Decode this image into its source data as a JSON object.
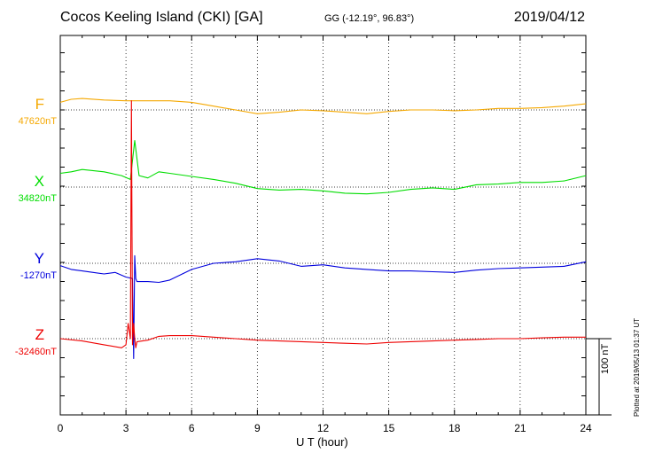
{
  "header": {
    "title": "Cocos Keeling Island (CKI)  [GA]",
    "coords": "GG (-12.19°,  96.83°)",
    "date": "2019/04/12"
  },
  "footer": {
    "plotted": "Plotted at 2019/05/13 01:37 UT",
    "scale_label": "100 nT"
  },
  "chart_data": {
    "type": "line",
    "xlabel": "U T (hour)",
    "xlim": [
      0,
      24
    ],
    "xticks": [
      "0",
      "3",
      "6",
      "9",
      "12",
      "15",
      "18",
      "21",
      "24"
    ],
    "scale_bar_nT": 100,
    "series": [
      {
        "name": "F",
        "baseline": "47620nT",
        "color": "#f5a800",
        "x": [
          0,
          0.5,
          1,
          2,
          3,
          4,
          5,
          6,
          7,
          8,
          9,
          10,
          11,
          12,
          13,
          14,
          15,
          16,
          17,
          18,
          19,
          20,
          21,
          22,
          23,
          24
        ],
        "y": [
          10,
          14,
          15,
          13,
          12,
          12,
          12,
          10,
          5,
          0,
          -5,
          -3,
          0,
          -1,
          -3,
          -5,
          -2,
          0,
          0,
          -1,
          0,
          2,
          2,
          3,
          5,
          8
        ]
      },
      {
        "name": "X",
        "baseline": "34820nT",
        "color": "#00dd00",
        "x": [
          0,
          0.5,
          1,
          2,
          2.8,
          3.2,
          3.4,
          3.6,
          4,
          4.5,
          5,
          6,
          7,
          8,
          9,
          10,
          11,
          12,
          13,
          14,
          15,
          16,
          17,
          18,
          19,
          20,
          21,
          22,
          23,
          24
        ],
        "y": [
          18,
          20,
          23,
          20,
          15,
          10,
          61,
          15,
          12,
          20,
          18,
          14,
          10,
          5,
          -2,
          -4,
          -3,
          -5,
          -8,
          -9,
          -7,
          -3,
          -1,
          -3,
          3,
          4,
          6,
          6,
          8,
          15
        ]
      },
      {
        "name": "Y",
        "baseline": "-1270nT",
        "color": "#0000dd",
        "x": [
          0,
          0.5,
          1,
          1.5,
          2,
          2.5,
          3,
          3.3,
          3.35,
          3.4,
          3.45,
          3.5,
          4,
          4.5,
          5,
          5.5,
          6,
          7,
          8,
          9,
          10,
          11,
          12,
          13,
          14,
          15,
          16,
          17,
          18,
          19,
          20,
          21,
          22,
          23,
          24
        ],
        "y": [
          -3,
          -8,
          -10,
          -12,
          -14,
          -12,
          -18,
          -20,
          -125,
          10,
          -20,
          -24,
          -24,
          -25,
          -22,
          -15,
          -8,
          0,
          2,
          6,
          3,
          -4,
          -2,
          -6,
          -8,
          -10,
          -10,
          -11,
          -12,
          -9,
          -7,
          -6,
          -5,
          -4,
          2
        ]
      },
      {
        "name": "Z",
        "baseline": "-32460nT",
        "color": "#ee0000",
        "x": [
          0,
          1,
          2,
          2.8,
          3,
          3.1,
          3.2,
          3.25,
          3.3,
          3.35,
          3.4,
          3.45,
          3.5,
          4,
          4.5,
          5,
          6,
          7,
          8,
          9,
          10,
          11,
          12,
          13,
          14,
          15,
          16,
          17,
          18,
          19,
          20,
          21,
          22,
          23,
          24
        ],
        "y": [
          0,
          -3,
          -8,
          -12,
          -8,
          20,
          0,
          312,
          -8,
          20,
          0,
          -12,
          -4,
          -2,
          3,
          4,
          4,
          2,
          0,
          -2,
          -3,
          -4,
          -5,
          -6,
          -7,
          -5,
          -4,
          -3,
          -2,
          -1,
          0,
          0,
          1,
          2,
          2
        ]
      }
    ]
  }
}
